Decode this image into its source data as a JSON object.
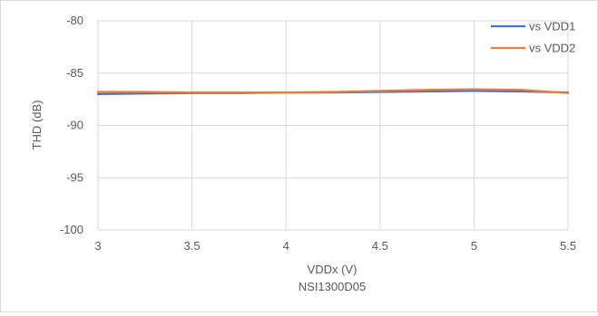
{
  "chart_data": {
    "type": "line",
    "title": "",
    "subtitle": "NSI1300D05",
    "xlabel": "VDDx (V)",
    "ylabel": "THD (dB)",
    "xlim": [
      3,
      5.5
    ],
    "ylim": [
      -100,
      -80
    ],
    "xticks": [
      3,
      3.5,
      4,
      4.5,
      5,
      5.5
    ],
    "yticks": [
      -80,
      -85,
      -90,
      -95,
      -100
    ],
    "xtick_labels": [
      "3",
      "3.5",
      "4",
      "4.5",
      "5",
      "5.5"
    ],
    "ytick_labels": [
      "-80",
      "-85",
      "-90",
      "-95",
      "-100"
    ],
    "grid": true,
    "legend_position": "top-right",
    "series": [
      {
        "name": "vs VDD1",
        "color": "#4472c4",
        "x": [
          3,
          3.25,
          3.5,
          3.75,
          4,
          4.25,
          4.5,
          4.75,
          5,
          5.25,
          5.5
        ],
        "y": [
          -87.0,
          -86.95,
          -86.9,
          -86.9,
          -86.85,
          -86.85,
          -86.8,
          -86.75,
          -86.7,
          -86.75,
          -86.85
        ]
      },
      {
        "name": "vs VDD2",
        "color": "#ed7d31",
        "x": [
          3,
          3.25,
          3.5,
          3.75,
          4,
          4.25,
          4.5,
          4.75,
          5,
          5.25,
          5.5
        ],
        "y": [
          -86.8,
          -86.8,
          -86.85,
          -86.85,
          -86.85,
          -86.8,
          -86.7,
          -86.6,
          -86.55,
          -86.6,
          -86.9
        ]
      }
    ]
  }
}
